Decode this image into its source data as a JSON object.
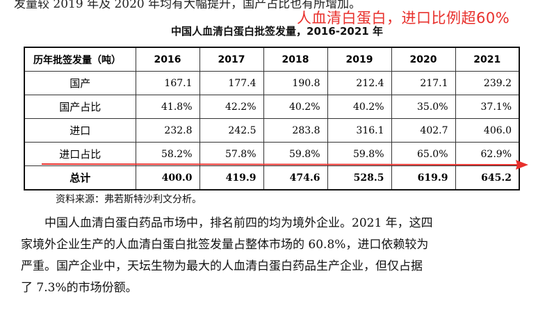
{
  "top_cut_text": "发量较 2019 年及 2020 年均有大幅提升，国产占比也有所增加。",
  "annotation": "人血清白蛋白，进口比例超60%",
  "table_title": "中国人血清白蛋白批签发量，2016-2021 年",
  "table": {
    "header": [
      "历年批签发量（吨）",
      "2016",
      "2017",
      "2018",
      "2019",
      "2020",
      "2021"
    ],
    "rows": [
      [
        "国产",
        "167.1",
        "177.4",
        "190.8",
        "212.4",
        "217.1",
        "239.2"
      ],
      [
        "国产占比",
        "41.8%",
        "42.2%",
        "40.2%",
        "40.2%",
        "35.0%",
        "37.1%"
      ],
      [
        "进口",
        "232.8",
        "242.5",
        "283.8",
        "316.1",
        "402.7",
        "406.0"
      ],
      [
        "进口占比",
        "58.2%",
        "57.8%",
        "59.8%",
        "59.8%",
        "65.0%",
        "62.9%"
      ],
      [
        "总计",
        "400.0",
        "419.9",
        "474.6",
        "528.5",
        "619.9",
        "645.2"
      ]
    ]
  },
  "source": "资料来源：弗若斯特沙利文分析。",
  "paragraph_lines": [
    "中国人血清白蛋白药品市场中，排名前四的均为境外企业。2021 年，这四",
    "家境外企业生产的人血清白蛋白批签发量占整体市场的 60.8%，进口依赖较为",
    "严重。国产企业中，天坛生物为最大的人血清白蛋白药品生产企业，但仅占据",
    "了 7.3%的市场份额。"
  ],
  "colors": {
    "annotation": "#e8302c",
    "arrow": "#e8302c"
  }
}
